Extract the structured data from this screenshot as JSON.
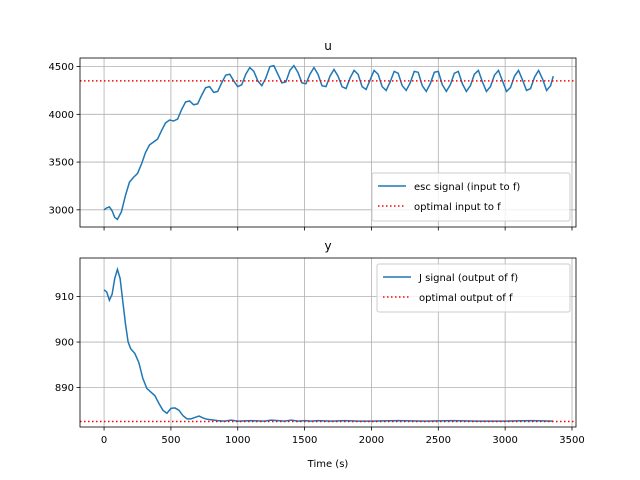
{
  "chart_data": [
    {
      "type": "line",
      "title": "u",
      "xlabel": "",
      "ylabel": "",
      "xlim": [
        -180,
        3530
      ],
      "ylim": [
        2820,
        4590
      ],
      "xticks": [
        0,
        500,
        1000,
        1500,
        2000,
        2500,
        3000,
        3500
      ],
      "xtick_labels": [
        "",
        "",
        "",
        "",
        "",
        "",
        "",
        ""
      ],
      "yticks": [
        3000,
        3500,
        4000,
        4500
      ],
      "ytick_labels": [
        "3000",
        "3500",
        "4000",
        "4500"
      ],
      "grid": true,
      "legend_position": "lower-right",
      "series": [
        {
          "name": "esc signal (input to f)",
          "style": "solid",
          "color": "#1f77b4",
          "x": [
            0,
            20,
            40,
            60,
            80,
            100,
            130,
            160,
            190,
            220,
            250,
            280,
            310,
            340,
            370,
            400,
            430,
            460,
            490,
            520,
            550,
            580,
            610,
            640,
            670,
            700,
            730,
            760,
            790,
            820,
            850,
            880,
            910,
            940,
            970,
            1000,
            1030,
            1060,
            1090,
            1120,
            1150,
            1180,
            1210,
            1240,
            1270,
            1300,
            1330,
            1360,
            1390,
            1420,
            1450,
            1480,
            1510,
            1540,
            1570,
            1600,
            1630,
            1660,
            1690,
            1720,
            1750,
            1780,
            1810,
            1840,
            1870,
            1900,
            1930,
            1960,
            1990,
            2020,
            2050,
            2080,
            2110,
            2140,
            2170,
            2200,
            2230,
            2260,
            2290,
            2320,
            2350,
            2380,
            2410,
            2440,
            2470,
            2500,
            2530,
            2560,
            2590,
            2620,
            2650,
            2680,
            2710,
            2740,
            2770,
            2800,
            2830,
            2860,
            2890,
            2920,
            2950,
            2980,
            3010,
            3040,
            3070,
            3100,
            3130,
            3160,
            3190,
            3220,
            3250,
            3280,
            3310,
            3340,
            3360
          ],
          "y": [
            3000,
            3020,
            3030,
            2990,
            2920,
            2900,
            2980,
            3150,
            3290,
            3340,
            3380,
            3480,
            3600,
            3680,
            3710,
            3740,
            3830,
            3910,
            3940,
            3930,
            3950,
            4050,
            4130,
            4140,
            4100,
            4110,
            4200,
            4280,
            4290,
            4230,
            4240,
            4330,
            4410,
            4420,
            4350,
            4290,
            4310,
            4420,
            4490,
            4450,
            4350,
            4300,
            4380,
            4500,
            4510,
            4420,
            4330,
            4340,
            4460,
            4510,
            4440,
            4330,
            4320,
            4420,
            4490,
            4420,
            4300,
            4290,
            4400,
            4470,
            4400,
            4290,
            4270,
            4380,
            4460,
            4420,
            4290,
            4260,
            4360,
            4460,
            4420,
            4290,
            4250,
            4340,
            4450,
            4430,
            4300,
            4250,
            4330,
            4450,
            4440,
            4300,
            4240,
            4320,
            4440,
            4450,
            4310,
            4240,
            4310,
            4430,
            4450,
            4320,
            4240,
            4300,
            4420,
            4460,
            4340,
            4240,
            4290,
            4410,
            4460,
            4350,
            4240,
            4280,
            4400,
            4460,
            4360,
            4250,
            4270,
            4390,
            4460,
            4370,
            4250,
            4300,
            4400
          ]
        },
        {
          "name": "optimal input to f",
          "style": "dotted",
          "color": "#ff0000",
          "x": [
            -180,
            3530
          ],
          "y": [
            4350,
            4350
          ]
        }
      ]
    },
    {
      "type": "line",
      "title": "y",
      "xlabel": "Time (s)",
      "ylabel": "",
      "xlim": [
        -180,
        3530
      ],
      "ylim": [
        881.3,
        918.5
      ],
      "xticks": [
        0,
        500,
        1000,
        1500,
        2000,
        2500,
        3000,
        3500
      ],
      "xtick_labels": [
        "0",
        "500",
        "1000",
        "1500",
        "2000",
        "2500",
        "3000",
        "3500"
      ],
      "yticks": [
        890,
        900,
        910
      ],
      "ytick_labels": [
        "890",
        "900",
        "910"
      ],
      "grid": true,
      "legend_position": "top-right",
      "series": [
        {
          "name": "J signal (output of f)",
          "style": "solid",
          "color": "#1f77b4",
          "x": [
            0,
            20,
            40,
            60,
            80,
            100,
            120,
            140,
            160,
            180,
            200,
            230,
            260,
            290,
            320,
            350,
            380,
            410,
            440,
            470,
            500,
            530,
            560,
            590,
            620,
            650,
            680,
            710,
            740,
            770,
            800,
            850,
            900,
            950,
            1000,
            1100,
            1200,
            1250,
            1300,
            1350,
            1400,
            1450,
            1500,
            1550,
            1600,
            1700,
            1800,
            1900,
            2000,
            2200,
            2400,
            2600,
            2800,
            3000,
            3200,
            3360
          ],
          "y": [
            911.5,
            911,
            909.2,
            910.5,
            914,
            916,
            914,
            909,
            904,
            900,
            898.5,
            897.5,
            895.5,
            892,
            889.8,
            889,
            888.2,
            886.5,
            885,
            884.3,
            885.4,
            885.5,
            885.0,
            883.8,
            883.1,
            883.1,
            883.4,
            883.7,
            883.3,
            883.0,
            882.9,
            882.7,
            882.6,
            882.8,
            882.6,
            882.7,
            882.6,
            882.8,
            882.7,
            882.6,
            882.8,
            882.6,
            882.7,
            882.6,
            882.7,
            882.6,
            882.7,
            882.6,
            882.6,
            882.7,
            882.6,
            882.7,
            882.6,
            882.6,
            882.7,
            882.6
          ]
        },
        {
          "name": "optimal output of f",
          "style": "dotted",
          "color": "#ff0000",
          "x": [
            -180,
            3530
          ],
          "y": [
            882.5,
            882.5
          ]
        }
      ]
    }
  ]
}
